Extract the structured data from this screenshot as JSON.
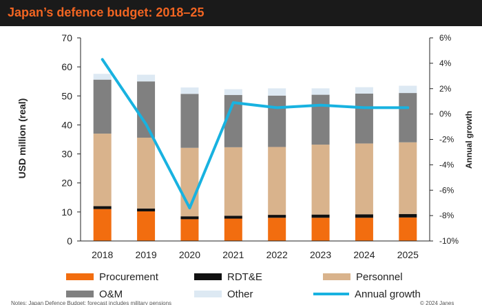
{
  "title": "Japan’s defence budget: 2018–25",
  "footnote": "Notes: Japan Defence Budget; forecast includes military pensions",
  "footnote_right": "© 2024 Janes",
  "colors": {
    "Procurement": "#f26d0f",
    "RDT&E": "#111111",
    "Personnel": "#d9b38c",
    "O&M": "#808080",
    "Other": "#dde9f3",
    "Annual growth": "#18b2e0"
  },
  "chart_data": {
    "type": "bar",
    "stacked": true,
    "categories": [
      "2018",
      "2019",
      "2020",
      "2021",
      "2022",
      "2023",
      "2024",
      "2025"
    ],
    "ylabel": "USD million (real)",
    "ylim": [
      0,
      70
    ],
    "yticks": [
      0,
      10,
      20,
      30,
      40,
      50,
      60,
      70
    ],
    "y2label": "Annual growth",
    "y2lim": [
      -10,
      6
    ],
    "y2ticks": [
      "-10%",
      "-8%",
      "-6%",
      "-4%",
      "-2%",
      "0%",
      "2%",
      "4%",
      "6%"
    ],
    "series": [
      {
        "name": "Procurement",
        "values": [
          11.0,
          10.2,
          7.5,
          7.7,
          8.0,
          8.0,
          8.0,
          8.1
        ]
      },
      {
        "name": "RDT&E",
        "values": [
          1.0,
          1.0,
          1.0,
          1.0,
          1.0,
          1.1,
          1.2,
          1.2
        ]
      },
      {
        "name": "Personnel",
        "values": [
          25.0,
          24.4,
          23.6,
          23.6,
          23.4,
          24.1,
          24.4,
          24.7
        ]
      },
      {
        "name": "O&M",
        "values": [
          18.6,
          19.4,
          18.6,
          18.0,
          17.7,
          17.2,
          17.2,
          17.0
        ]
      },
      {
        "name": "Other",
        "values": [
          2.0,
          2.3,
          2.2,
          2.0,
          2.5,
          2.2,
          2.2,
          2.5
        ]
      }
    ],
    "line": {
      "name": "Annual growth",
      "axis": "right",
      "values": [
        4.3,
        -0.8,
        -7.4,
        0.9,
        0.5,
        0.7,
        0.5,
        0.5
      ]
    }
  }
}
